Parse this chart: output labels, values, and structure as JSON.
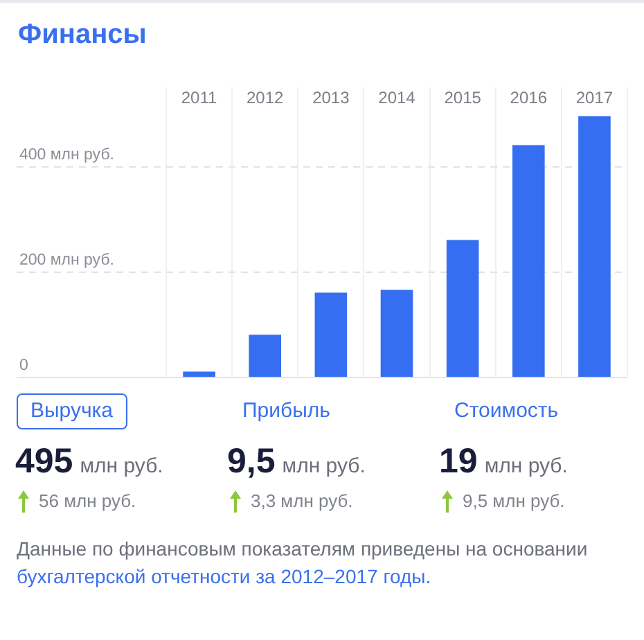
{
  "chart_data": {
    "type": "bar",
    "title": "Финансы",
    "categories": [
      "2011",
      "2012",
      "2013",
      "2014",
      "2015",
      "2016",
      "2017"
    ],
    "values": [
      10,
      80,
      160,
      165,
      260,
      440,
      495
    ],
    "color": "#356ef0",
    "ylim": [
      0,
      550
    ],
    "yticks": [
      0,
      {
        "value": 200,
        "label": "200 млн руб."
      },
      {
        "value": 400,
        "label": "400 млн руб."
      }
    ],
    "grid": true,
    "legend": false,
    "annotations": [
      "Выручка",
      "Прибыль",
      "Стоимость",
      "495 млн руб.",
      "9,5 млн руб.",
      "19 млн руб.",
      "56 млн руб.",
      "3,3 млн руб.",
      "9,5 млн руб.",
      "Данные по финансовым показателям приведены на основании",
      "бухгалтерской отчетности за 2012–2017 годы."
    ]
  }
}
